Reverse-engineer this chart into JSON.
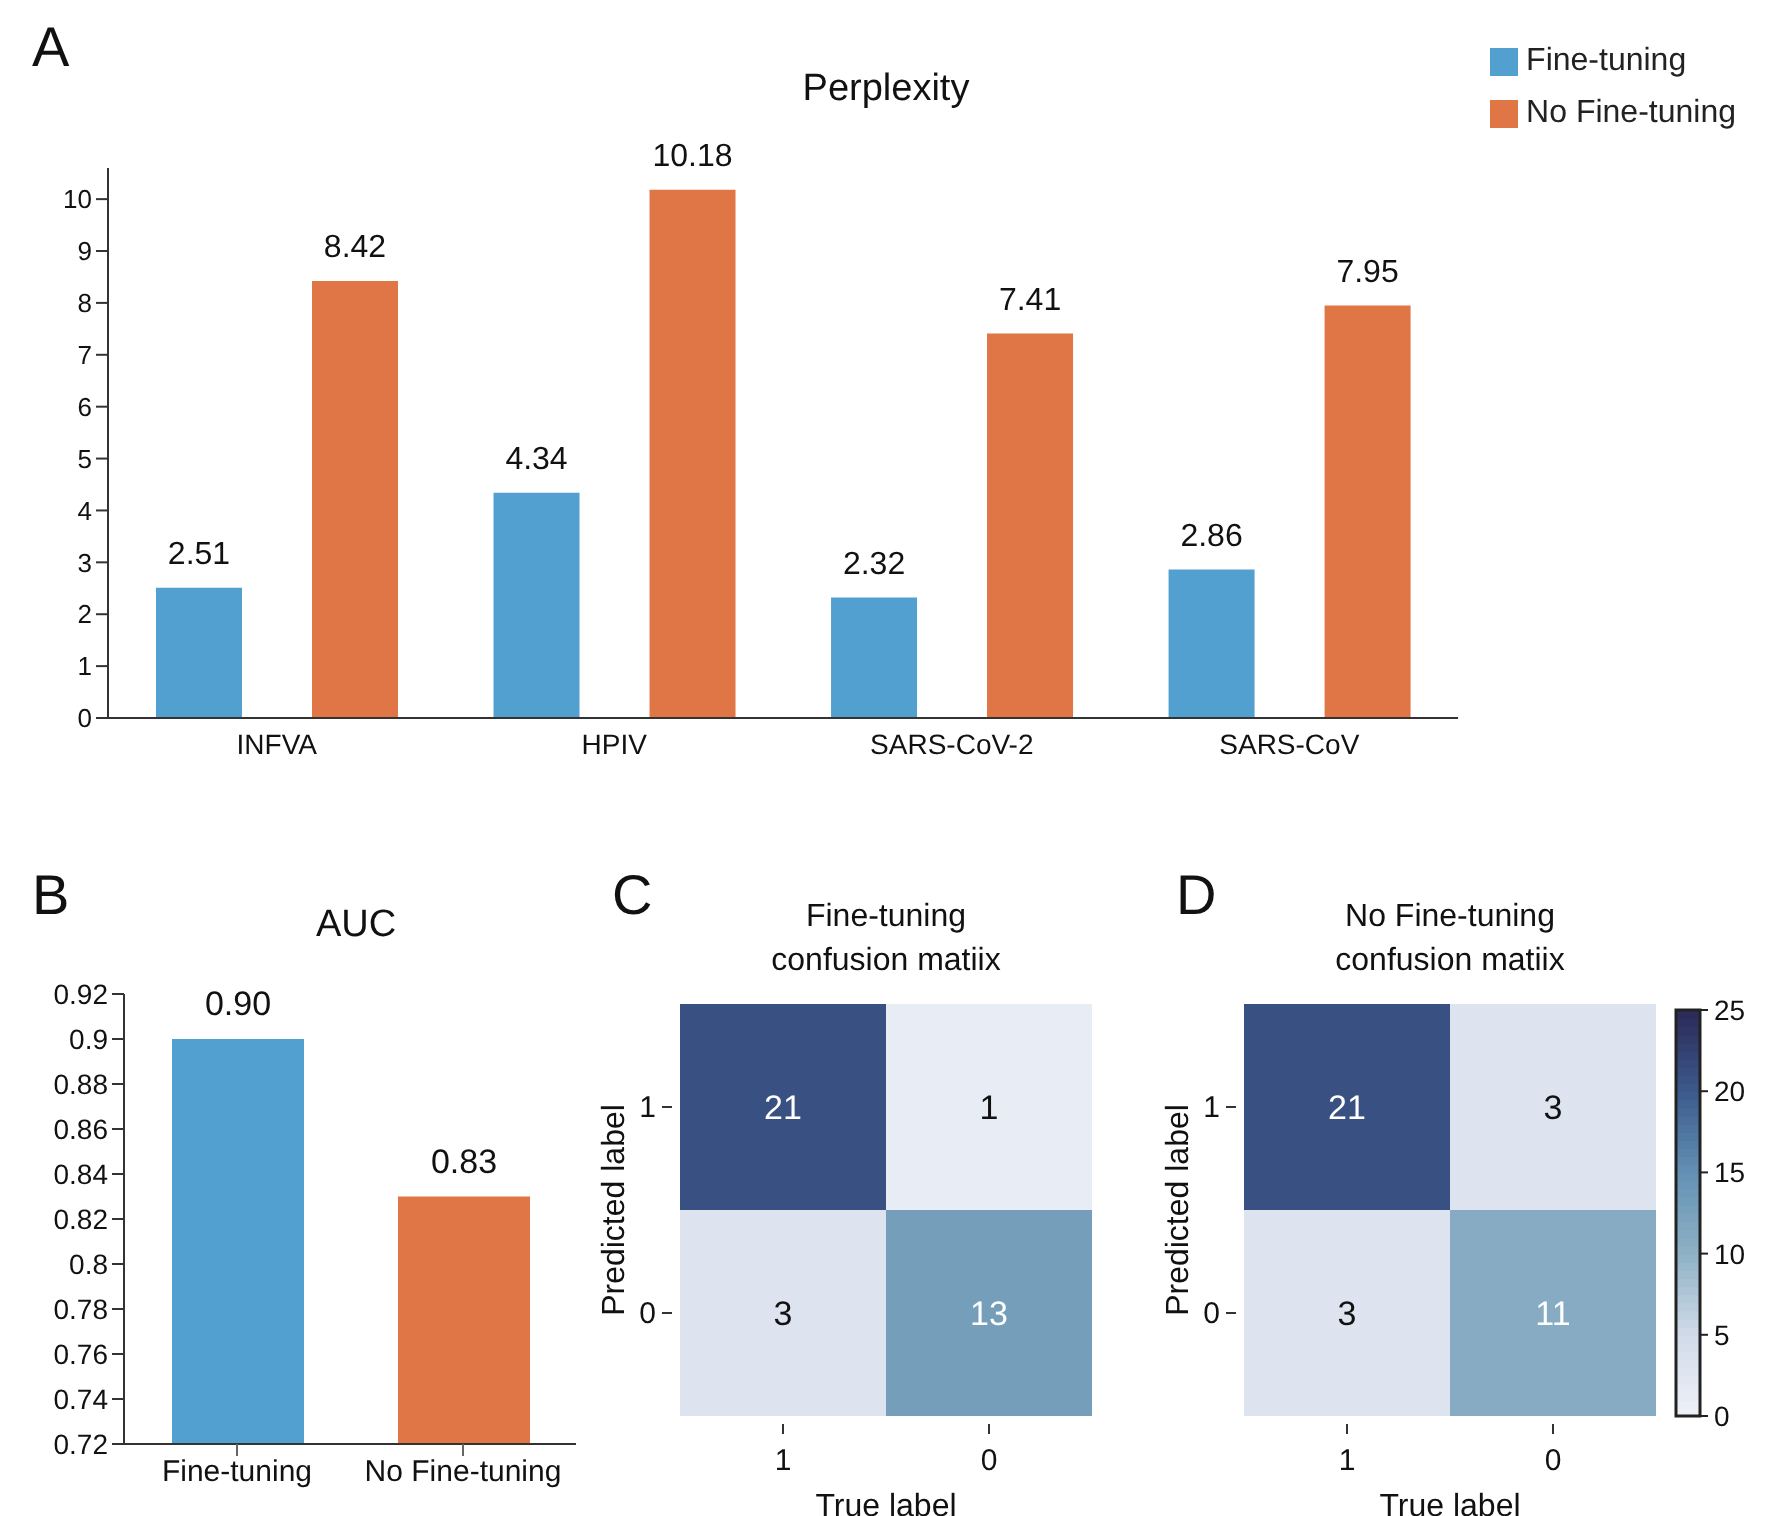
{
  "chart_data": [
    {
      "type": "bar",
      "title": "Perplexity",
      "annotations": [
        "A"
      ],
      "categories": [
        "INFVA",
        "HPIV",
        "SARS-CoV-2",
        "SARS-CoV"
      ],
      "series": [
        {
          "name": "Fine-tuning",
          "color": "#52a0d0",
          "values": [
            2.51,
            4.34,
            2.32,
            2.86
          ]
        },
        {
          "name": "No Fine-tuning",
          "color": "#e07545",
          "values": [
            8.42,
            10.18,
            7.41,
            7.95
          ]
        }
      ],
      "ylim": [
        0,
        10.6
      ],
      "yticks": [
        0,
        1,
        2,
        3,
        4,
        5,
        6,
        7,
        8,
        9,
        10
      ],
      "data_labels": true,
      "legend": "top right"
    },
    {
      "type": "bar",
      "title": "AUC",
      "annotations": [
        "B"
      ],
      "categories": [
        "Fine-tuning",
        "No Fine-tuning"
      ],
      "values": [
        0.9,
        0.83
      ],
      "colors": [
        "#52a0d0",
        "#e07545"
      ],
      "value_labels": [
        "0.90",
        "0.83"
      ],
      "ylim": [
        0.72,
        0.92
      ],
      "yticks": [
        0.72,
        0.74,
        0.76,
        0.78,
        0.8,
        0.82,
        0.84,
        0.86,
        0.88,
        0.9,
        0.92
      ]
    },
    {
      "type": "heatmap",
      "title": "Fine-tuning confusion matiix",
      "annotations": [
        "C"
      ],
      "xlabel": "True label",
      "ylabel": "Predicted label",
      "categories": [
        "1",
        "0"
      ],
      "y_categories": [
        "1",
        "0"
      ],
      "cells": [
        [
          21,
          1
        ],
        [
          3,
          13
        ]
      ],
      "data_labels": true
    },
    {
      "type": "heatmap",
      "title": "No Fine-tuning confusion matiix",
      "annotations": [
        "D"
      ],
      "xlabel": "True label",
      "ylabel": "Predicted label",
      "categories": [
        "1",
        "0"
      ],
      "y_categories": [
        "1",
        "0"
      ],
      "cells": [
        [
          21,
          3
        ],
        [
          3,
          11
        ]
      ],
      "data_labels": true,
      "clim": [
        0,
        25
      ],
      "cticks": [
        0,
        5,
        10,
        15,
        20,
        25
      ]
    }
  ]
}
